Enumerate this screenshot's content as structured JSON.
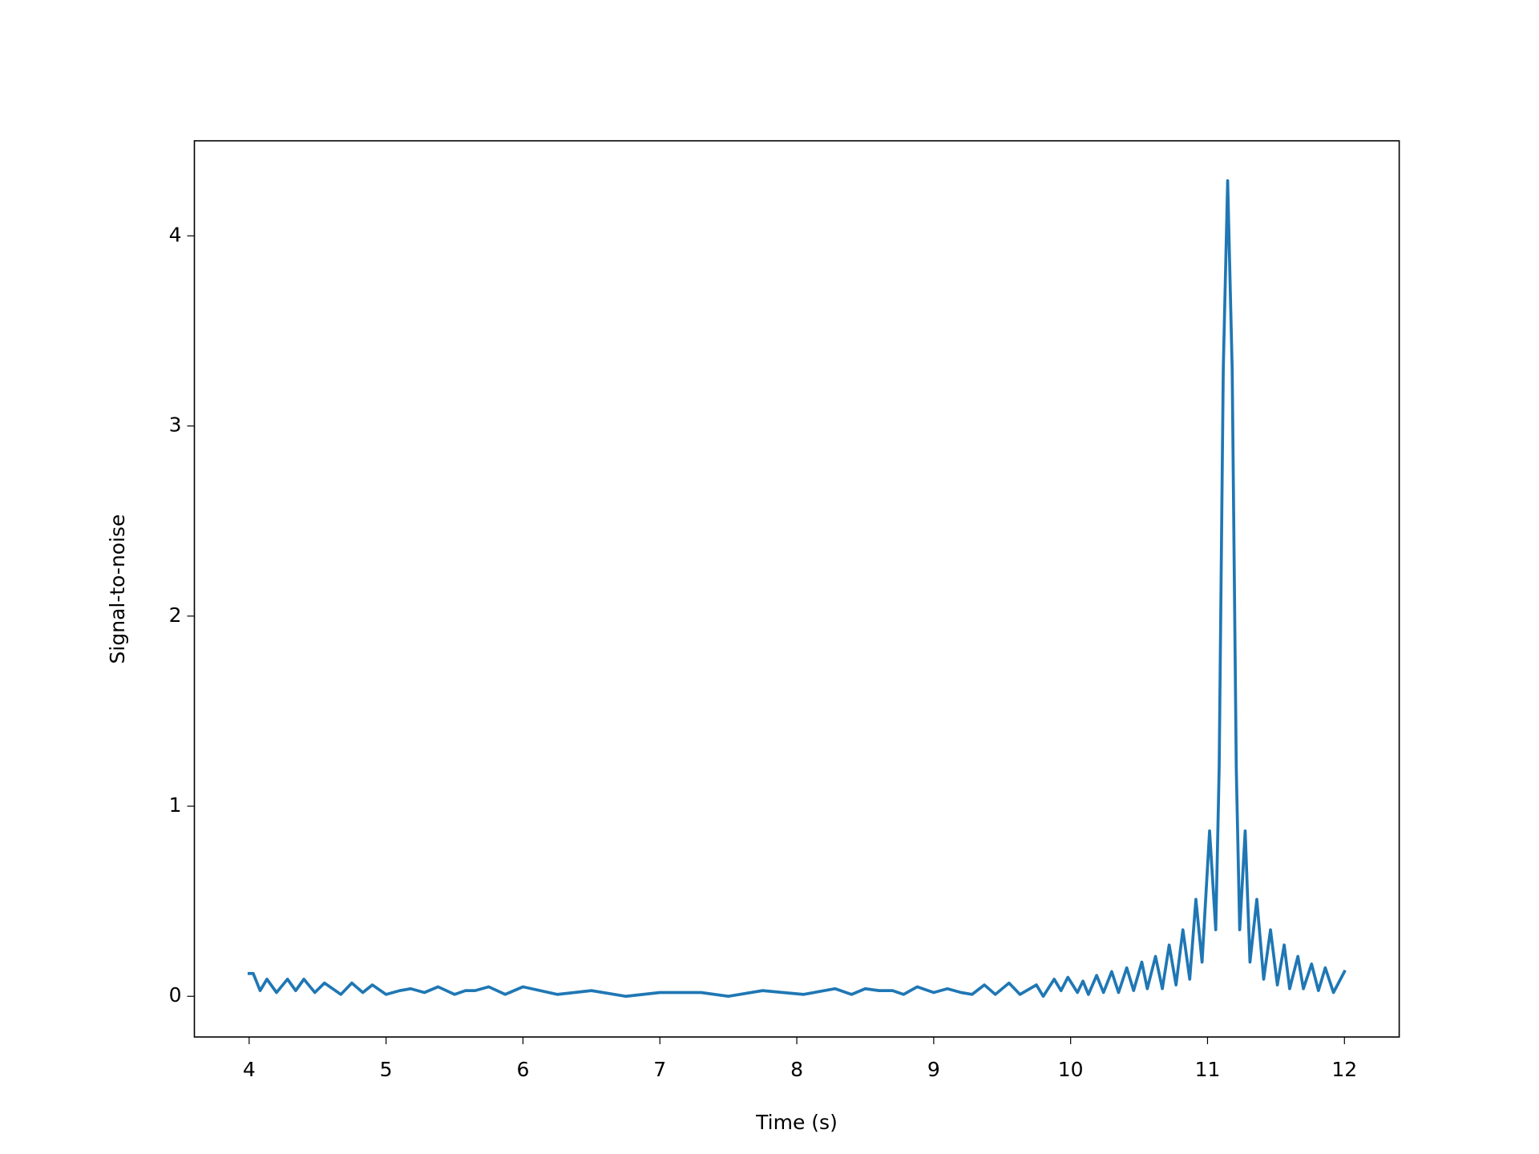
{
  "chart_data": {
    "type": "line",
    "xlabel": "Time (s)",
    "ylabel": "Signal-to-noise",
    "xlim": [
      3.6,
      12.4
    ],
    "xticks": [
      4,
      5,
      6,
      7,
      8,
      9,
      10,
      11,
      12
    ],
    "ylim": [
      -0.214,
      4.5
    ],
    "yticks": [
      0,
      1,
      2,
      3,
      4
    ],
    "grid": false,
    "series": [
      {
        "color": "#1f77b4",
        "x": [
          4.0,
          4.03,
          4.08,
          4.13,
          4.2,
          4.28,
          4.34,
          4.4,
          4.48,
          4.55,
          4.67,
          4.75,
          4.83,
          4.9,
          5.0,
          5.1,
          5.18,
          5.28,
          5.38,
          5.5,
          5.58,
          5.65,
          5.75,
          5.87,
          6.0,
          6.25,
          6.5,
          6.75,
          7.0,
          7.3,
          7.5,
          7.75,
          8.05,
          8.28,
          8.4,
          8.5,
          8.6,
          8.7,
          8.78,
          8.88,
          9.0,
          9.1,
          9.2,
          9.28,
          9.37,
          9.45,
          9.55,
          9.63,
          9.75,
          9.8,
          9.88,
          9.93,
          9.98,
          10.05,
          10.09,
          10.13,
          10.19,
          10.24,
          10.3,
          10.35,
          10.41,
          10.46,
          10.52,
          10.56,
          10.62,
          10.67,
          10.72,
          10.77,
          10.82,
          10.87,
          10.915,
          10.96,
          11.015,
          11.06,
          11.085,
          11.115,
          11.147,
          11.18,
          11.21,
          11.235,
          11.275,
          11.31,
          11.36,
          11.41,
          11.46,
          11.51,
          11.56,
          11.6,
          11.66,
          11.7,
          11.76,
          11.81,
          11.86,
          11.92,
          12.0
        ],
        "values": [
          0.12,
          0.12,
          0.03,
          0.09,
          0.02,
          0.09,
          0.03,
          0.09,
          0.02,
          0.07,
          0.01,
          0.07,
          0.02,
          0.06,
          0.01,
          0.03,
          0.04,
          0.02,
          0.05,
          0.01,
          0.03,
          0.03,
          0.05,
          0.01,
          0.05,
          0.01,
          0.03,
          0.0,
          0.02,
          0.02,
          0.0,
          0.03,
          0.01,
          0.04,
          0.01,
          0.04,
          0.03,
          0.03,
          0.01,
          0.05,
          0.02,
          0.04,
          0.02,
          0.01,
          0.06,
          0.01,
          0.07,
          0.01,
          0.06,
          0.0,
          0.09,
          0.03,
          0.1,
          0.02,
          0.08,
          0.01,
          0.11,
          0.02,
          0.13,
          0.02,
          0.15,
          0.03,
          0.18,
          0.04,
          0.21,
          0.04,
          0.27,
          0.06,
          0.35,
          0.09,
          0.51,
          0.18,
          0.87,
          0.35,
          1.2,
          3.3,
          4.29,
          3.3,
          1.2,
          0.35,
          0.87,
          0.18,
          0.51,
          0.09,
          0.35,
          0.06,
          0.27,
          0.04,
          0.21,
          0.04,
          0.17,
          0.03,
          0.15,
          0.02,
          0.13
        ]
      }
    ]
  }
}
